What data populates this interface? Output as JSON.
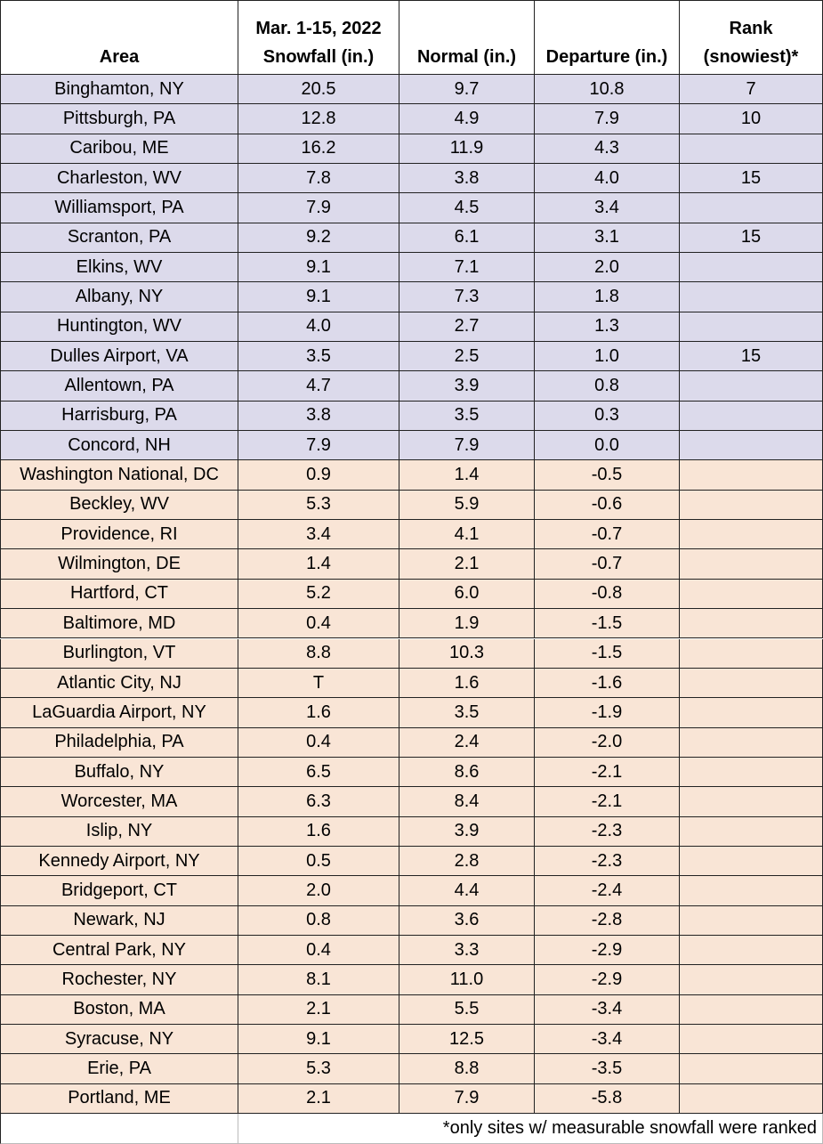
{
  "table": {
    "header": [
      "Area",
      [
        "Mar. 1-15, 2022",
        "Snowfall (in.)"
      ],
      "Normal (in.)",
      "Departure (in.)",
      [
        "Rank",
        "(snowiest)*"
      ]
    ],
    "rows": [
      [
        "Binghamton, NY",
        "20.5",
        "9.7",
        "10.8",
        "7"
      ],
      [
        "Pittsburgh, PA",
        "12.8",
        "4.9",
        "7.9",
        "10"
      ],
      [
        "Caribou, ME",
        "16.2",
        "11.9",
        "4.3",
        null
      ],
      [
        "Charleston, WV",
        "7.8",
        "3.8",
        "4.0",
        "15"
      ],
      [
        "Williamsport, PA",
        "7.9",
        "4.5",
        "3.4",
        null
      ],
      [
        "Scranton, PA",
        "9.2",
        "6.1",
        "3.1",
        "15"
      ],
      [
        "Elkins, WV",
        "9.1",
        "7.1",
        "2.0",
        null
      ],
      [
        "Albany, NY",
        "9.1",
        "7.3",
        "1.8",
        null
      ],
      [
        "Huntington, WV",
        "4.0",
        "2.7",
        "1.3",
        null
      ],
      [
        "Dulles Airport, VA",
        "3.5",
        "2.5",
        "1.0",
        "15"
      ],
      [
        "Allentown, PA",
        "4.7",
        "3.9",
        "0.8",
        null
      ],
      [
        "Harrisburg, PA",
        "3.8",
        "3.5",
        "0.3",
        null
      ],
      [
        "Concord, NH",
        "7.9",
        "7.9",
        "0.0",
        null
      ],
      [
        "Washington National, DC",
        "0.9",
        "1.4",
        "-0.5",
        null
      ],
      [
        "Beckley, WV",
        "5.3",
        "5.9",
        "-0.6",
        null
      ],
      [
        "Providence, RI",
        "3.4",
        "4.1",
        "-0.7",
        null
      ],
      [
        "Wilmington, DE",
        "1.4",
        "2.1",
        "-0.7",
        null
      ],
      [
        "Hartford, CT",
        "5.2",
        "6.0",
        "-0.8",
        null
      ],
      [
        "Baltimore, MD",
        "0.4",
        "1.9",
        "-1.5",
        null
      ],
      [
        "Burlington, VT",
        "8.8",
        "10.3",
        "-1.5",
        null
      ],
      [
        "Atlantic City, NJ",
        "T",
        "1.6",
        "-1.6",
        null
      ],
      [
        "LaGuardia Airport, NY",
        "1.6",
        "3.5",
        "-1.9",
        null
      ],
      [
        "Philadelphia, PA",
        "0.4",
        "2.4",
        "-2.0",
        null
      ],
      [
        "Buffalo, NY",
        "6.5",
        "8.6",
        "-2.1",
        null
      ],
      [
        "Worcester, MA",
        "6.3",
        "8.4",
        "-2.1",
        null
      ],
      [
        "Islip, NY",
        "1.6",
        "3.9",
        "-2.3",
        null
      ],
      [
        "Kennedy Airport, NY",
        "0.5",
        "2.8",
        "-2.3",
        null
      ],
      [
        "Bridgeport, CT",
        "2.0",
        "4.4",
        "-2.4",
        null
      ],
      [
        "Newark, NJ",
        "0.8",
        "3.6",
        "-2.8",
        null
      ],
      [
        "Central Park, NY",
        "0.4",
        "3.3",
        "-2.9",
        null
      ],
      [
        "Rochester, NY",
        "8.1",
        "11.0",
        "-2.9",
        null
      ],
      [
        "Boston, MA",
        "2.1",
        "5.5",
        "-3.4",
        null
      ],
      [
        "Syracuse, NY",
        "9.1",
        "12.5",
        "-3.4",
        null
      ],
      [
        "Erie, PA",
        "5.3",
        "8.8",
        "-3.5",
        null
      ],
      [
        "Portland, ME",
        "2.1",
        "7.9",
        "-5.8",
        null
      ]
    ],
    "footnote": "*only sites w/ measurable snowfall were ranked",
    "colors": {
      "above_normal": "#dcdaeb",
      "below_normal": "#f9e5d6"
    }
  }
}
